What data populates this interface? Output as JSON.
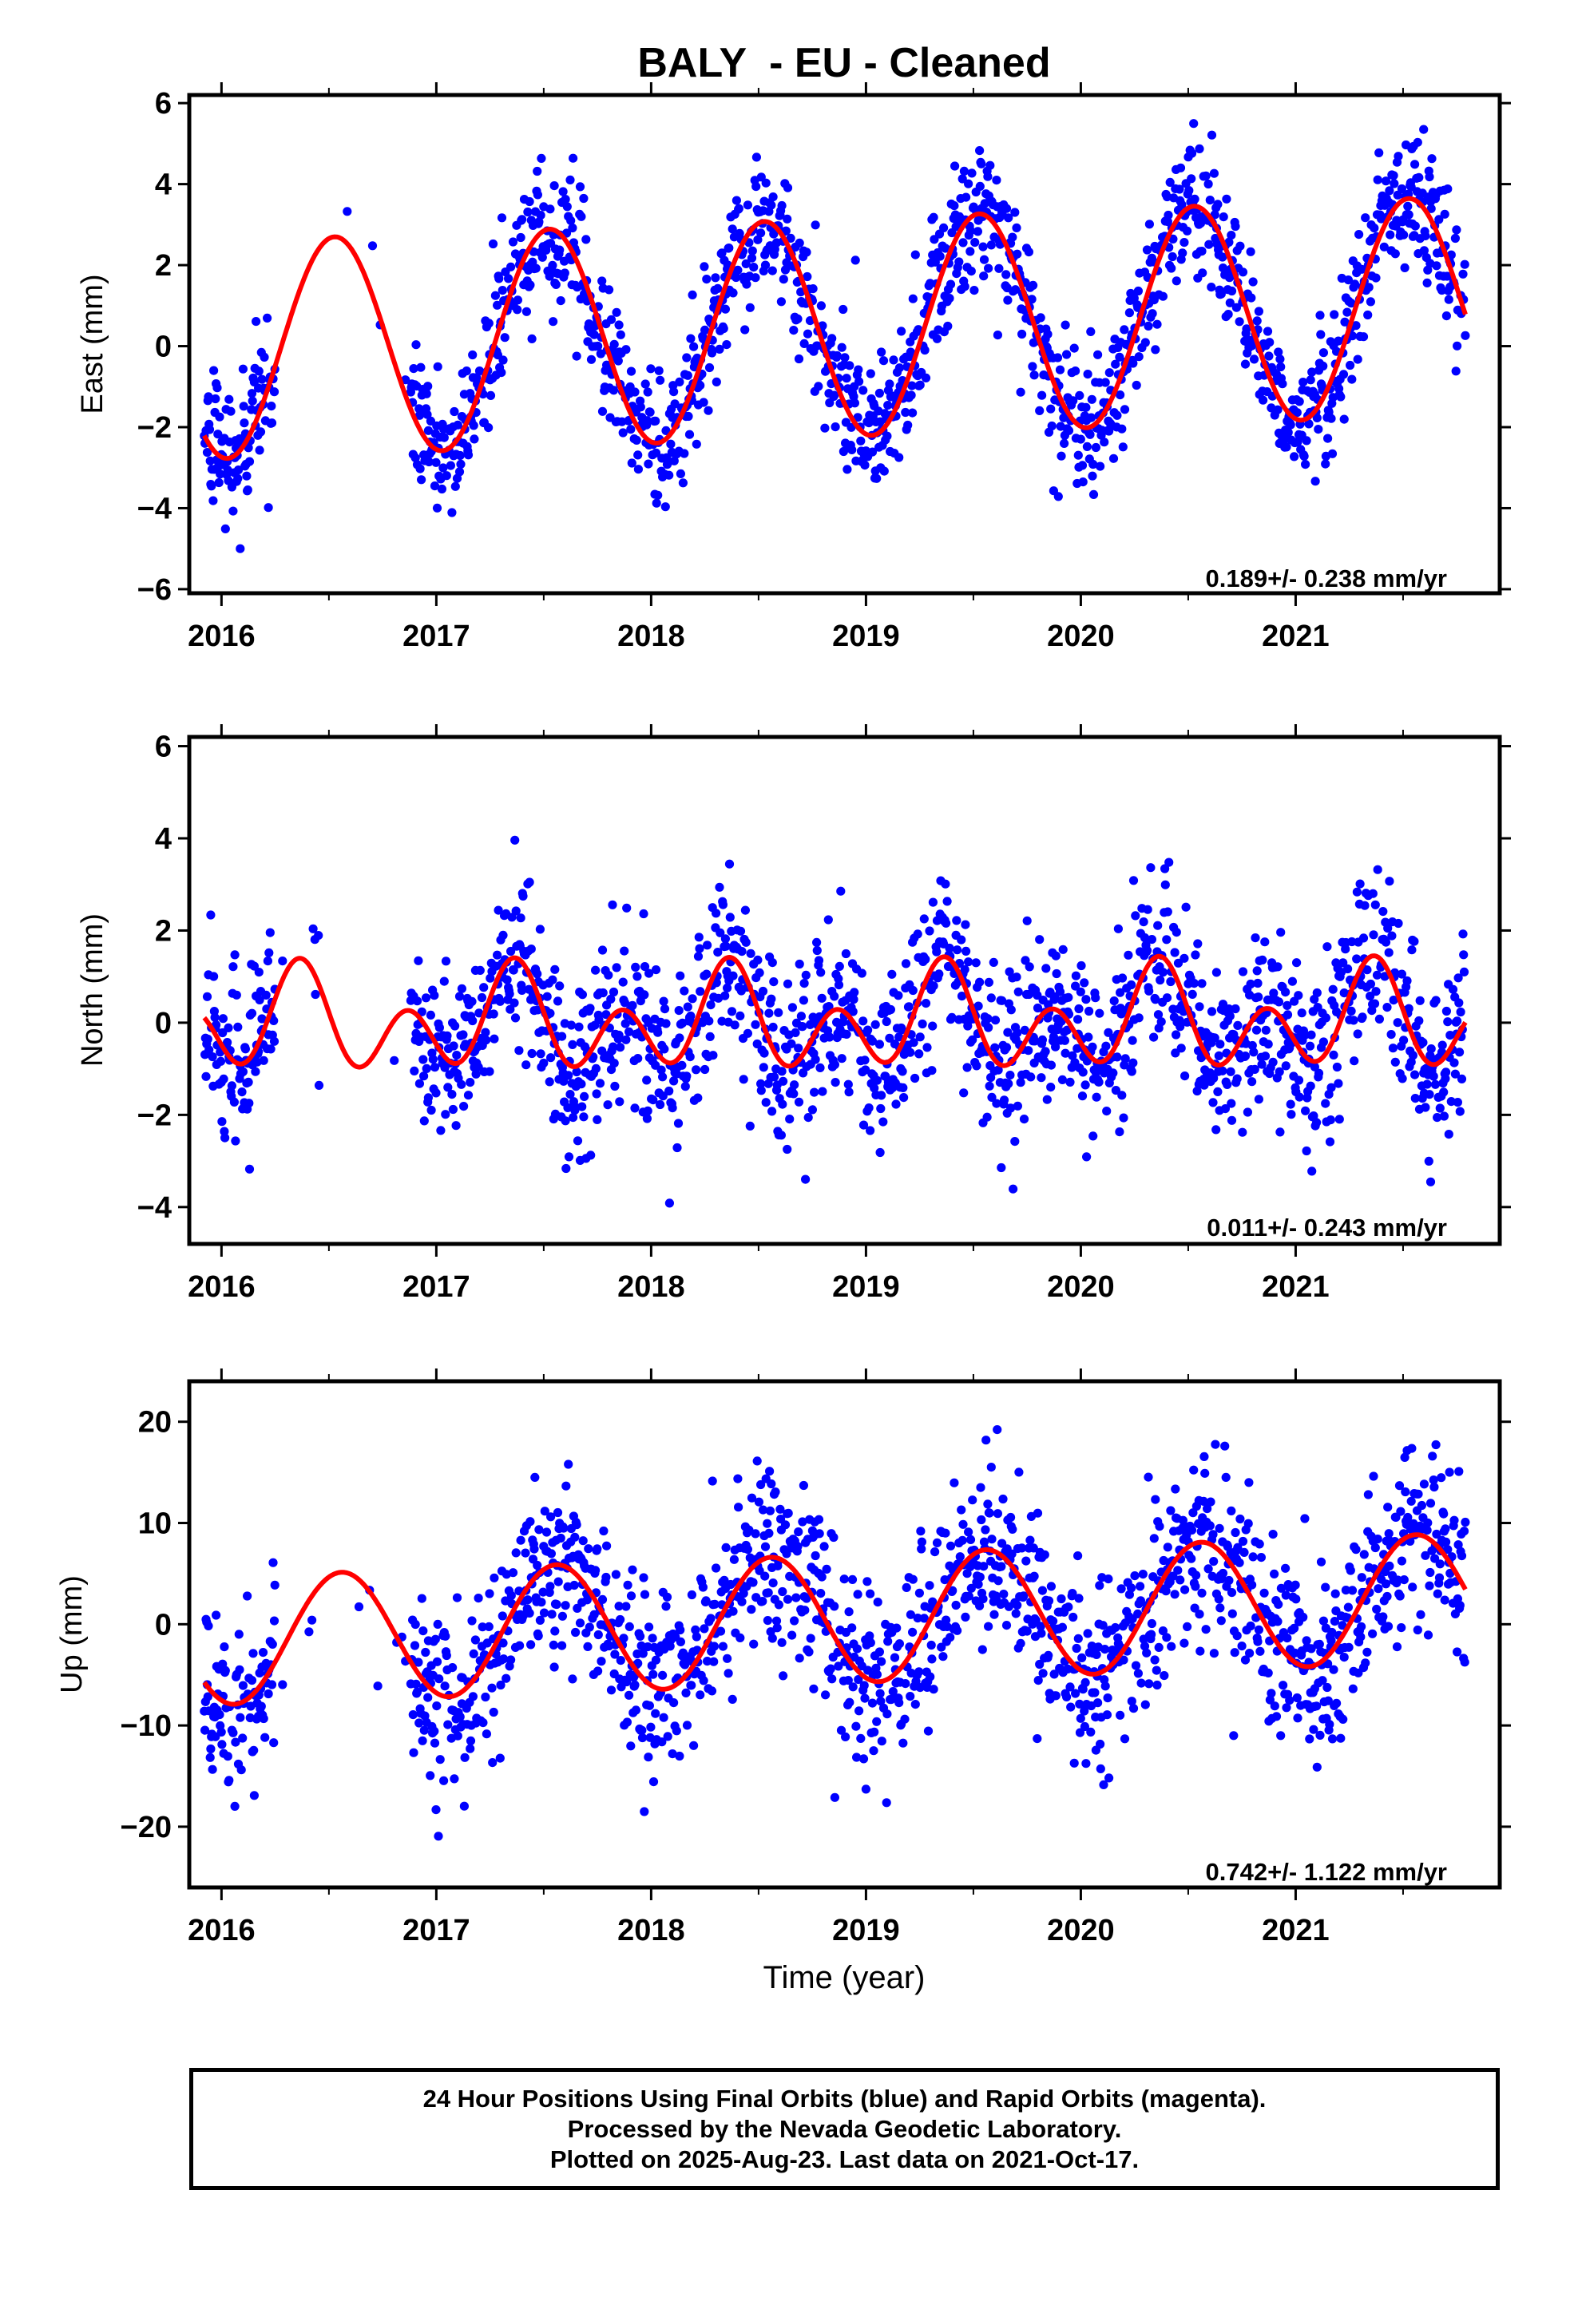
{
  "chart_data": [
    {
      "type": "scatter",
      "title": "BALY  - EU - Cleaned",
      "xlabel": "",
      "ylabel": "East (mm)",
      "xlim": [
        2015.85,
        2021.95
      ],
      "ylim": [
        -6.1,
        6.2
      ],
      "xticks": [
        2016,
        2017,
        2018,
        2019,
        2020,
        2021
      ],
      "yticks": [
        -6,
        -4,
        -2,
        0,
        2,
        4,
        6
      ],
      "annotation": "0.189+/- 0.238 mm/yr",
      "points_color": "#0000ff",
      "model_color": "#ff0000",
      "data_gap": [
        2016.25,
        2016.88
      ],
      "points_range": [
        2015.92,
        2021.79
      ],
      "noise_sd": 0.85,
      "model": {
        "trend_mm_per_yr": 0.189,
        "ref_year": 2018.85,
        "offset": 0.45,
        "annual_cos": -2.65,
        "annual_sin": -0.45,
        "semi_cos": 0.0,
        "semi_sin": 0.0,
        "x_start": 2015.92,
        "x_end": 2021.79
      }
    },
    {
      "type": "scatter",
      "title": "",
      "xlabel": "",
      "ylabel": "North (mm)",
      "xlim": [
        2015.85,
        2021.95
      ],
      "ylim": [
        -4.8,
        6.2
      ],
      "xticks": [
        2016,
        2017,
        2018,
        2019,
        2020,
        2021
      ],
      "yticks": [
        -4,
        -2,
        0,
        2,
        4,
        6
      ],
      "annotation": "0.011+/- 0.243 mm/yr",
      "points_color": "#0000ff",
      "model_color": "#ff0000",
      "data_gap": [
        2016.25,
        2016.88
      ],
      "points_range": [
        2015.92,
        2021.79
      ],
      "noise_sd": 0.95,
      "model": {
        "trend_mm_per_yr": 0.011,
        "ref_year": 2018.85,
        "offset": 0.0,
        "annual_cos": -0.35,
        "annual_sin": 0.45,
        "semi_cos": -0.1,
        "semi_sin": -0.85,
        "x_start": 2015.92,
        "x_end": 2021.79
      }
    },
    {
      "type": "scatter",
      "title": "",
      "xlabel": "Time (year)",
      "ylabel": "Up (mm)",
      "xlim": [
        2015.85,
        2021.95
      ],
      "ylim": [
        -26,
        24
      ],
      "xticks": [
        2016,
        2017,
        2018,
        2019,
        2020,
        2021
      ],
      "yticks": [
        -20,
        -10,
        0,
        10,
        20
      ],
      "annotation": "0.742+/- 1.122 mm/yr",
      "points_color": "#0000ff",
      "model_color": "#ff0000",
      "data_gap": [
        2016.25,
        2016.88
      ],
      "points_range": [
        2015.92,
        2021.79
      ],
      "noise_sd": 4.6,
      "model": {
        "trend_mm_per_yr": 0.742,
        "ref_year": 2018.85,
        "offset": 0.5,
        "annual_cos": -5.9,
        "annual_sin": -2.3,
        "semi_cos": 0.0,
        "semi_sin": 0.0,
        "x_start": 2015.92,
        "x_end": 2021.79
      }
    }
  ],
  "footer": {
    "line1": "24 Hour Positions Using Final Orbits (blue) and Rapid Orbits (magenta).",
    "line2": "Processed by the Nevada Geodetic Laboratory.",
    "line3": "Plotted on 2025-Aug-23. Last data on 2021-Oct-17."
  }
}
